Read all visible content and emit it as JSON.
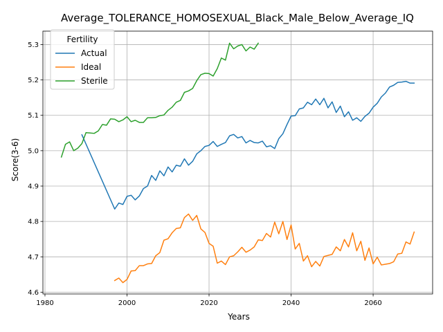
{
  "chart_data": {
    "type": "line",
    "title": "Average_TOLERANCE_HOMOSEXUAL_Black_Male_Below_Average_IQ",
    "xlabel": "Years",
    "ylabel": "Score(3-6)",
    "xlim": [
      1979.5,
      2074.5
    ],
    "ylim": [
      4.595,
      5.338
    ],
    "xticks": [
      1980,
      2000,
      2020,
      2040,
      2060
    ],
    "yticks": [
      4.6,
      4.7,
      4.8,
      4.9,
      5.0,
      5.1,
      5.2,
      5.3
    ],
    "grid": true,
    "legend": {
      "title": "Fertility",
      "placement": "top-left"
    },
    "series": [
      {
        "name": "Actual",
        "color": "#1f77b4",
        "points": [
          [
            1989,
            5.045
          ],
          [
            1997,
            4.835
          ],
          [
            1998,
            4.852
          ],
          [
            1999,
            4.848
          ],
          [
            2000,
            4.871
          ],
          [
            2001,
            4.874
          ],
          [
            2002,
            4.861
          ],
          [
            2003,
            4.872
          ],
          [
            2004,
            4.893
          ],
          [
            2005,
            4.9
          ],
          [
            2006,
            4.93
          ],
          [
            2007,
            4.916
          ],
          [
            2008,
            4.943
          ],
          [
            2009,
            4.929
          ],
          [
            2010,
            4.954
          ],
          [
            2011,
            4.94
          ],
          [
            2012,
            4.959
          ],
          [
            2013,
            4.956
          ],
          [
            2014,
            4.977
          ],
          [
            2015,
            4.959
          ],
          [
            2016,
            4.97
          ],
          [
            2017,
            4.991
          ],
          [
            2018,
            5.0
          ],
          [
            2019,
            5.012
          ],
          [
            2020,
            5.015
          ],
          [
            2021,
            5.026
          ],
          [
            2022,
            5.012
          ],
          [
            2023,
            5.018
          ],
          [
            2024,
            5.023
          ],
          [
            2025,
            5.042
          ],
          [
            2026,
            5.046
          ],
          [
            2027,
            5.036
          ],
          [
            2028,
            5.04
          ],
          [
            2029,
            5.022
          ],
          [
            2030,
            5.029
          ],
          [
            2031,
            5.023
          ],
          [
            2032,
            5.022
          ],
          [
            2033,
            5.027
          ],
          [
            2034,
            5.011
          ],
          [
            2035,
            5.014
          ],
          [
            2036,
            5.006
          ],
          [
            2037,
            5.034
          ],
          [
            2038,
            5.048
          ],
          [
            2039,
            5.074
          ],
          [
            2040,
            5.098
          ],
          [
            2041,
            5.099
          ],
          [
            2042,
            5.118
          ],
          [
            2043,
            5.121
          ],
          [
            2044,
            5.137
          ],
          [
            2045,
            5.13
          ],
          [
            2046,
            5.146
          ],
          [
            2047,
            5.13
          ],
          [
            2048,
            5.148
          ],
          [
            2049,
            5.121
          ],
          [
            2050,
            5.138
          ],
          [
            2051,
            5.108
          ],
          [
            2052,
            5.126
          ],
          [
            2053,
            5.096
          ],
          [
            2054,
            5.11
          ],
          [
            2055,
            5.086
          ],
          [
            2056,
            5.093
          ],
          [
            2057,
            5.083
          ],
          [
            2058,
            5.097
          ],
          [
            2059,
            5.106
          ],
          [
            2060,
            5.123
          ],
          [
            2061,
            5.134
          ],
          [
            2062,
            5.152
          ],
          [
            2063,
            5.163
          ],
          [
            2064,
            5.18
          ],
          [
            2065,
            5.185
          ],
          [
            2066,
            5.193
          ],
          [
            2067,
            5.194
          ],
          [
            2068,
            5.196
          ],
          [
            2069,
            5.191
          ],
          [
            2070,
            5.191
          ]
        ]
      },
      {
        "name": "Ideal",
        "color": "#ff7f0e",
        "points": [
          [
            1997,
            4.633
          ],
          [
            1998,
            4.64
          ],
          [
            1999,
            4.627
          ],
          [
            2000,
            4.636
          ],
          [
            2001,
            4.66
          ],
          [
            2002,
            4.661
          ],
          [
            2003,
            4.675
          ],
          [
            2004,
            4.675
          ],
          [
            2005,
            4.68
          ],
          [
            2006,
            4.681
          ],
          [
            2007,
            4.703
          ],
          [
            2008,
            4.712
          ],
          [
            2009,
            4.747
          ],
          [
            2010,
            4.751
          ],
          [
            2011,
            4.768
          ],
          [
            2012,
            4.78
          ],
          [
            2013,
            4.782
          ],
          [
            2014,
            4.811
          ],
          [
            2015,
            4.821
          ],
          [
            2016,
            4.803
          ],
          [
            2017,
            4.817
          ],
          [
            2018,
            4.779
          ],
          [
            2019,
            4.769
          ],
          [
            2020,
            4.738
          ],
          [
            2021,
            4.73
          ],
          [
            2022,
            4.682
          ],
          [
            2023,
            4.688
          ],
          [
            2024,
            4.678
          ],
          [
            2025,
            4.7
          ],
          [
            2026,
            4.703
          ],
          [
            2027,
            4.714
          ],
          [
            2028,
            4.727
          ],
          [
            2029,
            4.713
          ],
          [
            2030,
            4.719
          ],
          [
            2031,
            4.728
          ],
          [
            2032,
            4.748
          ],
          [
            2033,
            4.746
          ],
          [
            2034,
            4.766
          ],
          [
            2035,
            4.756
          ],
          [
            2036,
            4.798
          ],
          [
            2037,
            4.765
          ],
          [
            2038,
            4.8
          ],
          [
            2039,
            4.749
          ],
          [
            2040,
            4.79
          ],
          [
            2041,
            4.722
          ],
          [
            2042,
            4.738
          ],
          [
            2043,
            4.688
          ],
          [
            2044,
            4.703
          ],
          [
            2045,
            4.672
          ],
          [
            2046,
            4.687
          ],
          [
            2047,
            4.674
          ],
          [
            2048,
            4.701
          ],
          [
            2049,
            4.704
          ],
          [
            2050,
            4.707
          ],
          [
            2051,
            4.728
          ],
          [
            2052,
            4.717
          ],
          [
            2053,
            4.749
          ],
          [
            2054,
            4.728
          ],
          [
            2055,
            4.768
          ],
          [
            2056,
            4.717
          ],
          [
            2057,
            4.744
          ],
          [
            2058,
            4.69
          ],
          [
            2059,
            4.725
          ],
          [
            2060,
            4.68
          ],
          [
            2061,
            4.699
          ],
          [
            2062,
            4.677
          ],
          [
            2063,
            4.679
          ],
          [
            2064,
            4.681
          ],
          [
            2065,
            4.686
          ],
          [
            2066,
            4.708
          ],
          [
            2067,
            4.71
          ],
          [
            2068,
            4.742
          ],
          [
            2069,
            4.736
          ],
          [
            2070,
            4.77
          ]
        ]
      },
      {
        "name": "Sterile",
        "color": "#2ca02c",
        "points": [
          [
            1984,
            4.982
          ],
          [
            1985,
            5.018
          ],
          [
            1986,
            5.025
          ],
          [
            1987,
            5.0
          ],
          [
            1988,
            5.007
          ],
          [
            1989,
            5.02
          ],
          [
            1990,
            5.051
          ],
          [
            1991,
            5.05
          ],
          [
            1992,
            5.049
          ],
          [
            1993,
            5.056
          ],
          [
            1994,
            5.074
          ],
          [
            1995,
            5.072
          ],
          [
            1996,
            5.09
          ],
          [
            1997,
            5.089
          ],
          [
            1998,
            5.082
          ],
          [
            1999,
            5.087
          ],
          [
            2000,
            5.096
          ],
          [
            2001,
            5.082
          ],
          [
            2002,
            5.086
          ],
          [
            2003,
            5.08
          ],
          [
            2004,
            5.08
          ],
          [
            2005,
            5.093
          ],
          [
            2006,
            5.093
          ],
          [
            2007,
            5.094
          ],
          [
            2008,
            5.099
          ],
          [
            2009,
            5.101
          ],
          [
            2010,
            5.114
          ],
          [
            2011,
            5.123
          ],
          [
            2012,
            5.137
          ],
          [
            2013,
            5.142
          ],
          [
            2014,
            5.165
          ],
          [
            2015,
            5.169
          ],
          [
            2016,
            5.176
          ],
          [
            2017,
            5.198
          ],
          [
            2018,
            5.215
          ],
          [
            2019,
            5.219
          ],
          [
            2020,
            5.218
          ],
          [
            2021,
            5.211
          ],
          [
            2022,
            5.232
          ],
          [
            2023,
            5.262
          ],
          [
            2024,
            5.256
          ],
          [
            2025,
            5.304
          ],
          [
            2026,
            5.288
          ],
          [
            2027,
            5.296
          ],
          [
            2028,
            5.3
          ],
          [
            2029,
            5.282
          ],
          [
            2030,
            5.293
          ],
          [
            2031,
            5.287
          ],
          [
            2032,
            5.304
          ]
        ]
      }
    ]
  }
}
